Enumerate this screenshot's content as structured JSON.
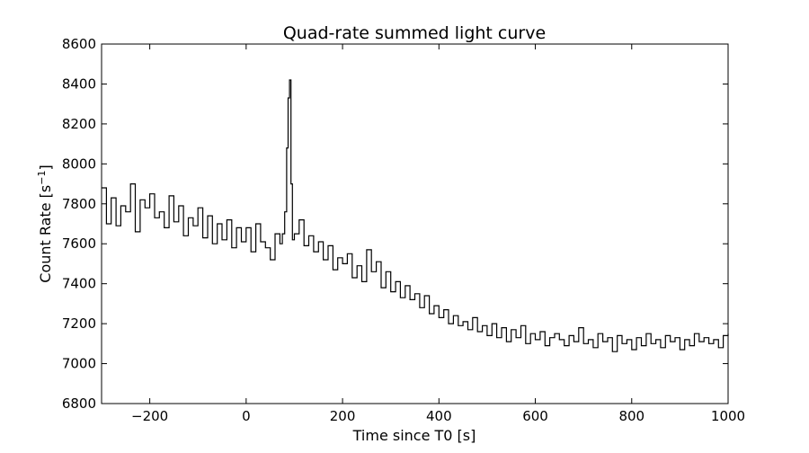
{
  "chart_data": {
    "type": "line",
    "title": "Quad-rate summed light curve",
    "xlabel": "Time since T0 [s]",
    "ylabel": "Count Rate [s",
    "ylabel_sup": "−1",
    "ylabel_end": "]",
    "xlim": [
      -300,
      1000
    ],
    "ylim": [
      6800,
      8600
    ],
    "xticks": [
      -200,
      0,
      200,
      400,
      600,
      800,
      1000
    ],
    "xtick_labels": [
      "−200",
      "0",
      "200",
      "400",
      "600",
      "800",
      "1000"
    ],
    "yticks": [
      6800,
      7000,
      7200,
      7400,
      7600,
      7800,
      8000,
      8200,
      8400,
      8600
    ],
    "ytick_labels": [
      "6800",
      "7000",
      "7200",
      "7400",
      "7600",
      "7800",
      "8000",
      "8200",
      "8400",
      "8600"
    ],
    "grid": false,
    "line_color": "#000000",
    "series": [
      {
        "x": [
          -300,
          -290,
          -280,
          -270,
          -260,
          -250,
          -240,
          -230,
          -220,
          -210,
          -200,
          -190,
          -180,
          -170,
          -160,
          -150,
          -140,
          -130,
          -120,
          -110,
          -100,
          -90,
          -80,
          -70,
          -60,
          -50,
          -40,
          -30,
          -20,
          -10,
          0,
          10,
          20,
          30,
          40,
          50,
          60,
          70,
          75,
          80,
          84,
          87,
          90,
          93,
          96,
          100,
          110,
          120,
          130,
          140,
          150,
          160,
          170,
          180,
          190,
          200,
          210,
          220,
          230,
          240,
          250,
          260,
          270,
          280,
          290,
          300,
          310,
          320,
          330,
          340,
          350,
          360,
          370,
          380,
          390,
          400,
          410,
          420,
          430,
          440,
          450,
          460,
          470,
          480,
          490,
          500,
          510,
          520,
          530,
          540,
          550,
          560,
          570,
          580,
          590,
          600,
          610,
          620,
          630,
          640,
          650,
          660,
          670,
          680,
          690,
          700,
          710,
          720,
          730,
          740,
          750,
          760,
          770,
          780,
          790,
          800,
          810,
          820,
          830,
          840,
          850,
          860,
          870,
          880,
          890,
          900,
          910,
          920,
          930,
          940,
          950,
          960,
          970,
          980,
          990,
          1000
        ],
        "y": [
          7880,
          7700,
          7830,
          7690,
          7790,
          7760,
          7900,
          7660,
          7820,
          7780,
          7850,
          7730,
          7760,
          7680,
          7840,
          7710,
          7790,
          7640,
          7730,
          7690,
          7780,
          7630,
          7740,
          7600,
          7700,
          7620,
          7720,
          7580,
          7680,
          7610,
          7680,
          7560,
          7700,
          7610,
          7580,
          7520,
          7650,
          7600,
          7650,
          7760,
          8080,
          8330,
          8420,
          7900,
          7620,
          7650,
          7720,
          7590,
          7640,
          7560,
          7610,
          7520,
          7590,
          7470,
          7530,
          7500,
          7550,
          7430,
          7490,
          7410,
          7570,
          7460,
          7510,
          7380,
          7460,
          7360,
          7410,
          7330,
          7390,
          7320,
          7350,
          7280,
          7340,
          7250,
          7290,
          7230,
          7270,
          7200,
          7240,
          7190,
          7210,
          7170,
          7230,
          7160,
          7190,
          7140,
          7200,
          7130,
          7180,
          7110,
          7170,
          7130,
          7190,
          7100,
          7150,
          7120,
          7160,
          7090,
          7130,
          7150,
          7120,
          7090,
          7140,
          7110,
          7180,
          7100,
          7120,
          7080,
          7150,
          7110,
          7130,
          7060,
          7140,
          7100,
          7120,
          7070,
          7130,
          7090,
          7150,
          7100,
          7120,
          7080,
          7140,
          7110,
          7130,
          7070,
          7120,
          7090,
          7150,
          7110,
          7130,
          7100,
          7120,
          7080,
          7140,
          7150
        ]
      }
    ]
  }
}
